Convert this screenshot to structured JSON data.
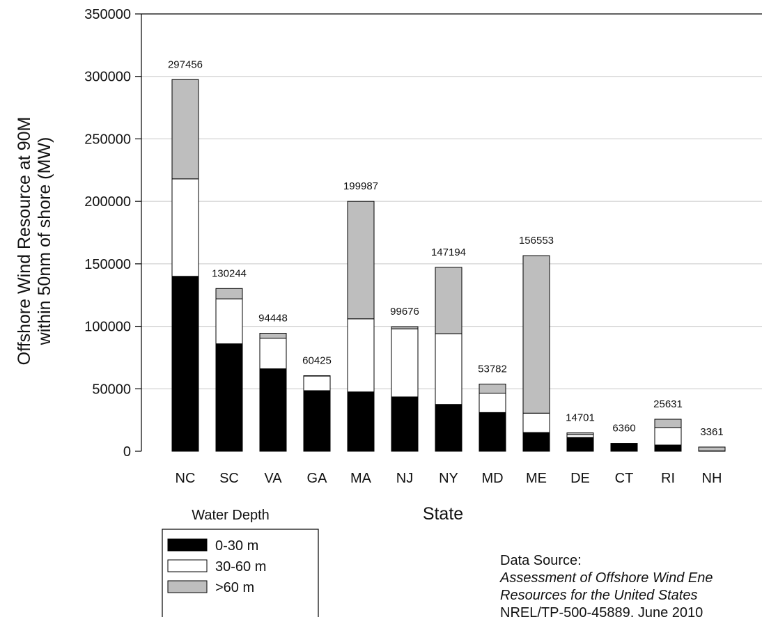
{
  "chart_data": {
    "type": "bar",
    "stacked": true,
    "categories": [
      "NC",
      "SC",
      "VA",
      "GA",
      "MA",
      "NJ",
      "NY",
      "MD",
      "ME",
      "DE",
      "CT",
      "RI",
      "NH"
    ],
    "series": [
      {
        "name": "0-30 m",
        "color": "#000000",
        "values": [
          140000,
          86000,
          66000,
          48500,
          47500,
          43500,
          37500,
          31000,
          15000,
          11000,
          5800,
          5000,
          0
        ]
      },
      {
        "name": "30-60 m",
        "color": "#ffffff",
        "values": [
          78000,
          36000,
          24500,
          11900,
          58500,
          54500,
          56500,
          15500,
          15500,
          2300,
          400,
          14000,
          300
        ]
      },
      {
        "name": ">60 m",
        "color": "#bebebe",
        "values": [
          79456,
          8244,
          3948,
          25,
          93987,
          1676,
          53194,
          7282,
          126053,
          1401,
          160,
          6631,
          3061
        ]
      }
    ],
    "totals": [
      "297456",
      "130244",
      "94448",
      "60425",
      "199987",
      "99676",
      "147194",
      "53782",
      "156553",
      "14701",
      "6360",
      "25631",
      "3361"
    ],
    "ylabel": [
      "Offshore Wind Resource at 90M",
      "within 50nm of shore (MW)"
    ],
    "xlabel": "State",
    "ylim": [
      0,
      350000
    ],
    "yticks": [
      0,
      50000,
      100000,
      150000,
      200000,
      250000,
      300000,
      350000
    ],
    "ytick_labels": [
      "0",
      "50000",
      "100000",
      "150000",
      "200000",
      "250000",
      "300000",
      "350000"
    ],
    "grid": true,
    "legend_title": "Water Depth",
    "legend_placement": "bottom-left"
  },
  "source": {
    "heading": "Data Source:",
    "lines": [
      "Assessment of Offshore Wind Ene",
      "Resources for the United States",
      "NREL/TP-500-45889, June 2010"
    ]
  }
}
